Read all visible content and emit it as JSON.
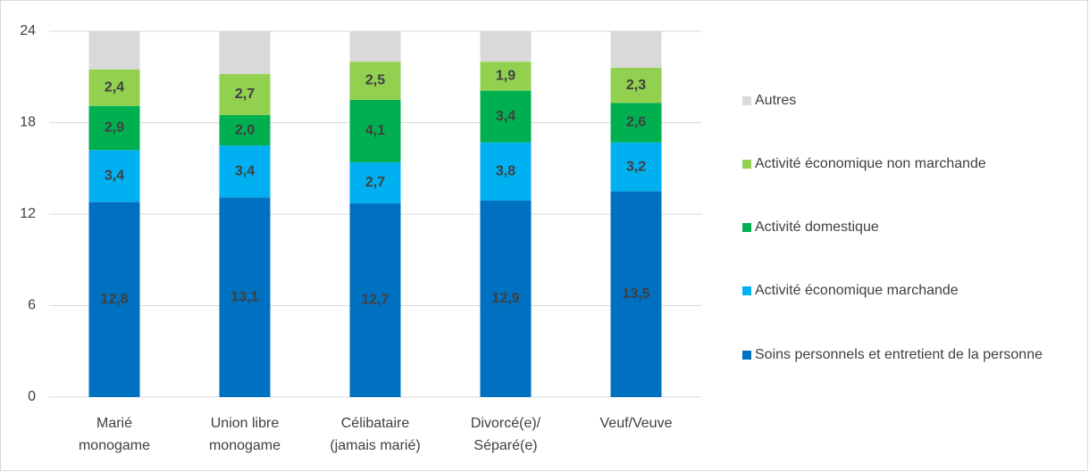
{
  "chart_data": {
    "type": "stacked_bar",
    "categories": [
      "Marié\nmonogame",
      "Union libre\nmonogame",
      "Célibataire\n(jamais marié)",
      "Divorcé(e)/\nSéparé(e)",
      "Veuf/Veuve"
    ],
    "series": [
      {
        "name": "Soins personnels et entretient de la personne",
        "color": "#0070c0",
        "values": [
          12.8,
          13.1,
          12.7,
          12.9,
          13.5
        ],
        "value_labels": [
          "12,8",
          "13,1",
          "12,7",
          "12,9",
          "13,5"
        ]
      },
      {
        "name": "Activité économique marchande",
        "color": "#00b0f0",
        "values": [
          3.4,
          3.4,
          2.7,
          3.8,
          3.2
        ],
        "value_labels": [
          "3,4",
          "3,4",
          "2,7",
          "3,8",
          "3,2"
        ]
      },
      {
        "name": "Activité domestique",
        "color": "#00b050",
        "values": [
          2.9,
          2.0,
          4.1,
          3.4,
          2.6
        ],
        "value_labels": [
          "2,9",
          "2,0",
          "4,1",
          "3,4",
          "2,6"
        ]
      },
      {
        "name": "Activité économique non marchande",
        "color": "#92d050",
        "values": [
          2.4,
          2.7,
          2.5,
          1.9,
          2.3
        ],
        "value_labels": [
          "2,4",
          "2,7",
          "2,5",
          "1,9",
          "2,3"
        ]
      },
      {
        "name": "Autres",
        "color": "#d9d9d9",
        "values": [
          2.5,
          2.8,
          2.0,
          2.0,
          2.4
        ]
      }
    ],
    "ylim": [
      0,
      24
    ],
    "yticks": [
      0,
      6,
      12,
      18,
      24
    ],
    "grid": true,
    "legend": "right"
  }
}
